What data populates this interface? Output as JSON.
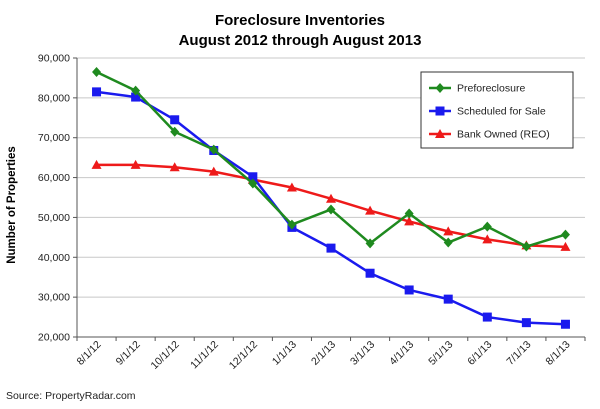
{
  "chart_data": {
    "type": "line",
    "title": "Foreclosure Inventories",
    "subtitle": "August 2012 through August 2013",
    "xlabel": "",
    "ylabel": "Number of Properties",
    "ylim": [
      20000,
      90000
    ],
    "yticks": [
      20000,
      30000,
      40000,
      50000,
      60000,
      70000,
      80000,
      90000
    ],
    "ytick_labels": [
      "20,000",
      "30,000",
      "40,000",
      "50,000",
      "60,000",
      "70,000",
      "80,000",
      "90,000"
    ],
    "categories": [
      "8/1/12",
      "9/1/12",
      "10/1/12",
      "11/1/12",
      "12/1/12",
      "1/1/13",
      "2/1/13",
      "3/1/13",
      "4/1/13",
      "5/1/13",
      "6/1/13",
      "7/1/13",
      "8/1/13"
    ],
    "grid": "horizontal",
    "legend_position": "top-right",
    "series": [
      {
        "name": "Preforeclosure",
        "color": "#1f8a1f",
        "marker": "diamond",
        "values": [
          86500,
          81800,
          71500,
          67000,
          58500,
          48200,
          52000,
          43500,
          51000,
          43700,
          47700,
          42700,
          45700
        ]
      },
      {
        "name": "Scheduled for Sale",
        "color": "#1a1aee",
        "marker": "square",
        "values": [
          81500,
          80200,
          74500,
          66800,
          60200,
          47500,
          42300,
          36000,
          31800,
          29500,
          25000,
          23600,
          23200
        ]
      },
      {
        "name": "Bank Owned (REO)",
        "color": "#ee1a1a",
        "marker": "triangle",
        "values": [
          63200,
          63200,
          62600,
          61500,
          59500,
          57500,
          54700,
          51700,
          49000,
          46500,
          44500,
          43000,
          42600
        ]
      }
    ]
  },
  "source": "Source: PropertyRadar.com"
}
